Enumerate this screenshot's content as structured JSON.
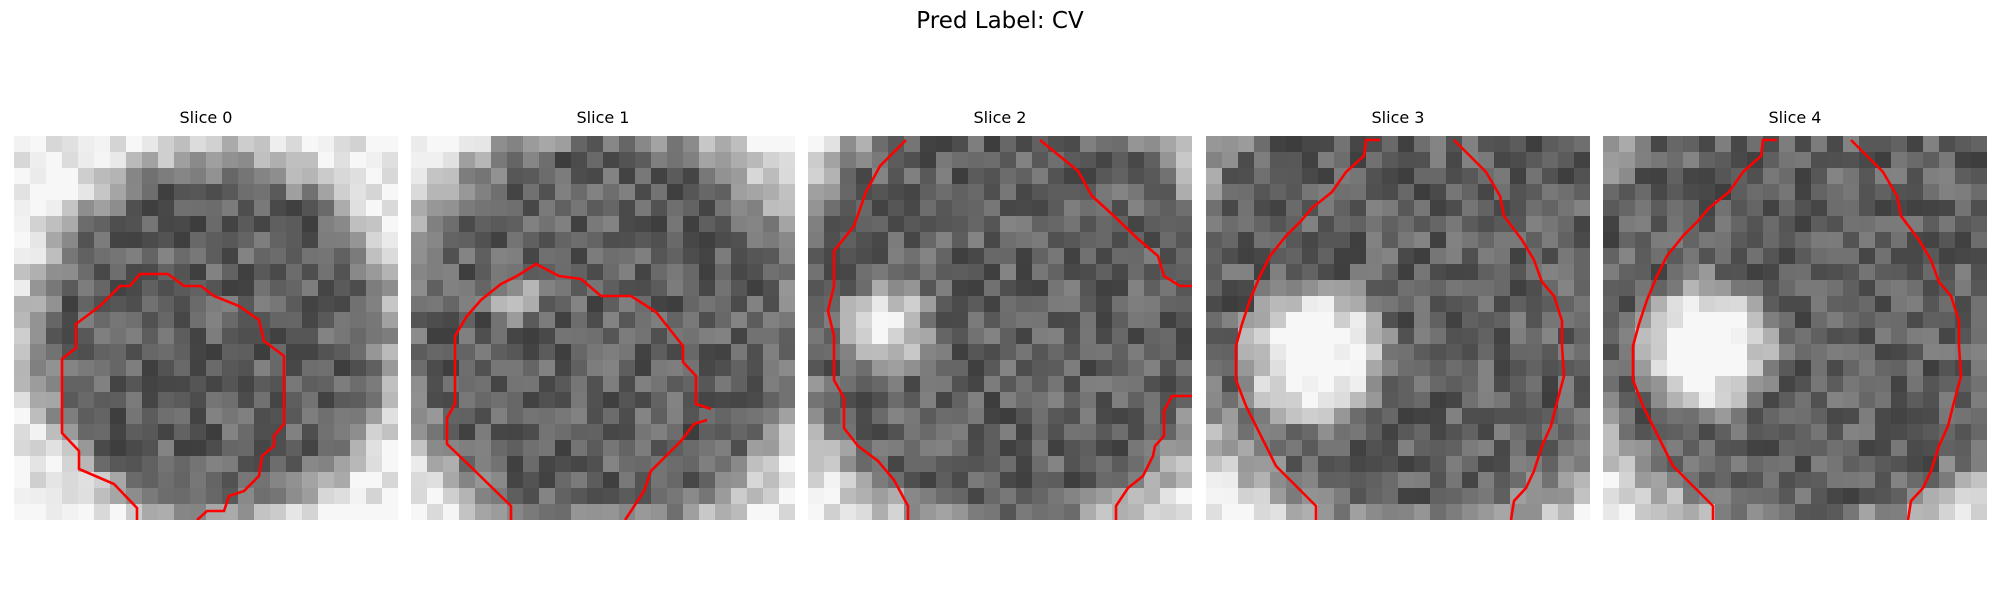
{
  "figure": {
    "title": "Pred Label: CV",
    "contour_color": "#ff0000",
    "colormap": "grayscale"
  },
  "slices": [
    {
      "title": "Slice 0"
    },
    {
      "title": "Slice 1"
    },
    {
      "title": "Slice 2"
    },
    {
      "title": "Slice 3"
    },
    {
      "title": "Slice 4"
    }
  ]
}
